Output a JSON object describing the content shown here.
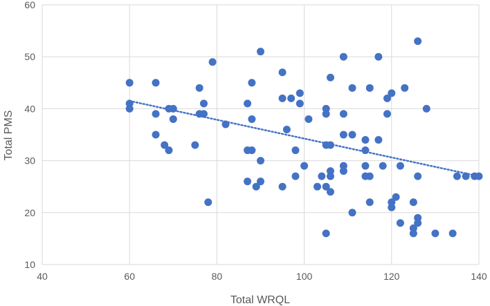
{
  "chart_data": {
    "type": "scatter",
    "title": "",
    "xlabel": "Total WRQL",
    "ylabel": "Total PMS",
    "xlim": [
      40,
      140
    ],
    "ylim": [
      10,
      60
    ],
    "x_ticks": [
      40,
      60,
      80,
      100,
      120,
      140
    ],
    "y_ticks": [
      10,
      20,
      30,
      40,
      50,
      60
    ],
    "grid": true,
    "legend": "none",
    "colors": {
      "points": "#4472C4",
      "trendline": "#4472C4",
      "grid": "#d9d9d9",
      "text": "#595959"
    },
    "trendline": {
      "type": "linear",
      "style": "dotted",
      "x_range": [
        60,
        140
      ],
      "y_start": 41.5,
      "y_end": 27
    },
    "series": [
      {
        "points": [
          [
            60,
            45
          ],
          [
            60,
            41
          ],
          [
            60,
            40
          ],
          [
            66,
            45
          ],
          [
            66,
            39
          ],
          [
            66,
            35
          ],
          [
            68,
            33
          ],
          [
            69,
            40
          ],
          [
            69,
            32
          ],
          [
            70,
            40
          ],
          [
            70,
            38
          ],
          [
            75,
            33
          ],
          [
            76,
            44
          ],
          [
            76,
            39
          ],
          [
            77,
            41
          ],
          [
            77,
            39
          ],
          [
            78,
            22
          ],
          [
            79,
            49
          ],
          [
            82,
            37
          ],
          [
            87,
            41
          ],
          [
            87,
            32
          ],
          [
            87,
            26
          ],
          [
            88,
            45
          ],
          [
            88,
            38
          ],
          [
            88,
            32
          ],
          [
            89,
            25
          ],
          [
            90,
            51
          ],
          [
            90,
            30
          ],
          [
            90,
            26
          ],
          [
            95,
            47
          ],
          [
            95,
            42
          ],
          [
            95,
            25
          ],
          [
            96,
            36
          ],
          [
            97,
            42
          ],
          [
            98,
            32
          ],
          [
            98,
            27
          ],
          [
            99,
            43
          ],
          [
            99,
            41
          ],
          [
            100,
            29
          ],
          [
            101,
            38
          ],
          [
            103,
            25
          ],
          [
            104,
            27
          ],
          [
            105,
            40
          ],
          [
            105,
            39
          ],
          [
            105,
            33
          ],
          [
            105,
            25
          ],
          [
            105,
            16
          ],
          [
            106,
            46
          ],
          [
            106,
            33
          ],
          [
            106,
            28
          ],
          [
            106,
            27
          ],
          [
            106,
            24
          ],
          [
            109,
            50
          ],
          [
            109,
            39
          ],
          [
            109,
            35
          ],
          [
            109,
            29
          ],
          [
            109,
            28
          ],
          [
            111,
            44
          ],
          [
            111,
            35
          ],
          [
            111,
            20
          ],
          [
            114,
            34
          ],
          [
            114,
            32
          ],
          [
            114,
            29
          ],
          [
            114,
            27
          ],
          [
            115,
            44
          ],
          [
            115,
            27
          ],
          [
            115,
            22
          ],
          [
            117,
            50
          ],
          [
            117,
            34
          ],
          [
            118,
            29
          ],
          [
            119,
            42
          ],
          [
            119,
            39
          ],
          [
            120,
            43
          ],
          [
            120,
            22
          ],
          [
            120,
            21
          ],
          [
            121,
            23
          ],
          [
            122,
            29
          ],
          [
            122,
            18
          ],
          [
            123,
            44
          ],
          [
            125,
            22
          ],
          [
            125,
            17
          ],
          [
            125,
            16
          ],
          [
            126,
            53
          ],
          [
            126,
            27
          ],
          [
            126,
            19
          ],
          [
            126,
            18
          ],
          [
            128,
            40
          ],
          [
            130,
            16
          ],
          [
            134,
            16
          ],
          [
            135,
            27
          ],
          [
            137,
            27
          ],
          [
            139,
            27
          ],
          [
            140,
            27
          ]
        ]
      }
    ]
  }
}
